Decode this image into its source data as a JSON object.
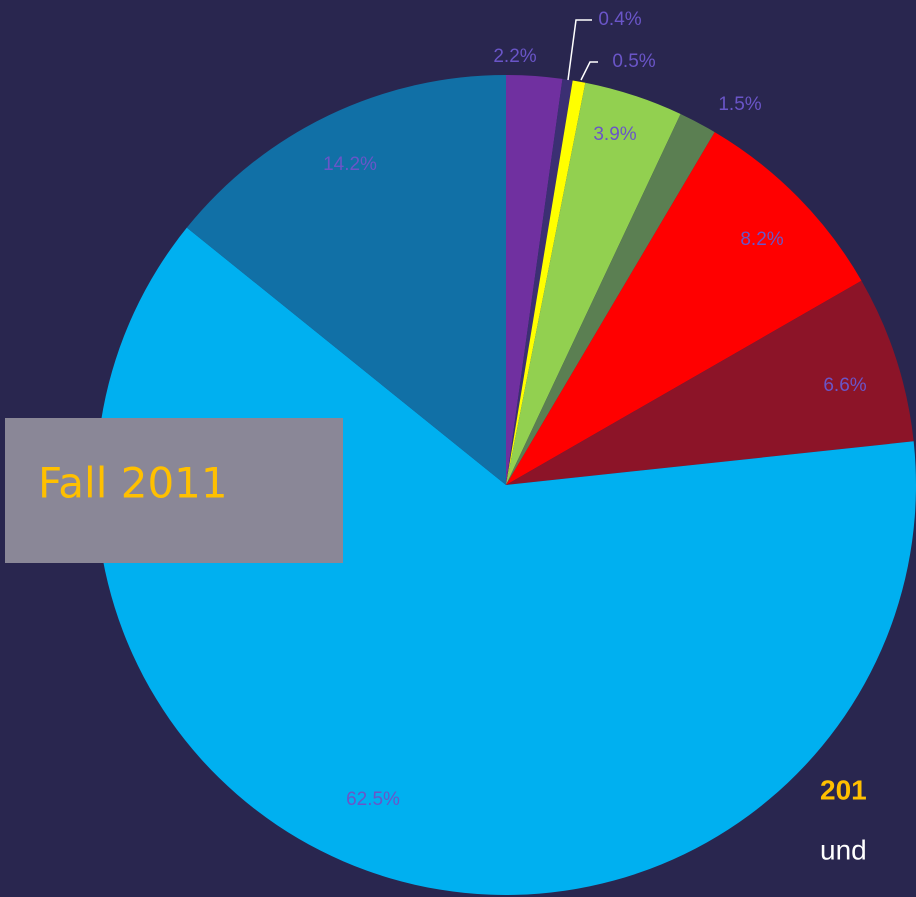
{
  "chart_data": {
    "type": "pie",
    "values": [
      2.2,
      0.4,
      0.5,
      3.9,
      1.5,
      8.2,
      6.6,
      62.5,
      14.2
    ],
    "value_labels": [
      "2.2%",
      "0.4%",
      "0.5%",
      "3.9%",
      "1.5%",
      "8.2%",
      "6.6%",
      "62.5%",
      "14.2%"
    ],
    "colors": [
      "#7030a0",
      "#3b2f73",
      "#ffff00",
      "#92d050",
      "#5b7f52",
      "#ff0000",
      "#8c1428",
      "#00b0f0",
      "#1170a6"
    ],
    "annotations": [
      "Fall 2011",
      "201",
      "und"
    ]
  }
}
